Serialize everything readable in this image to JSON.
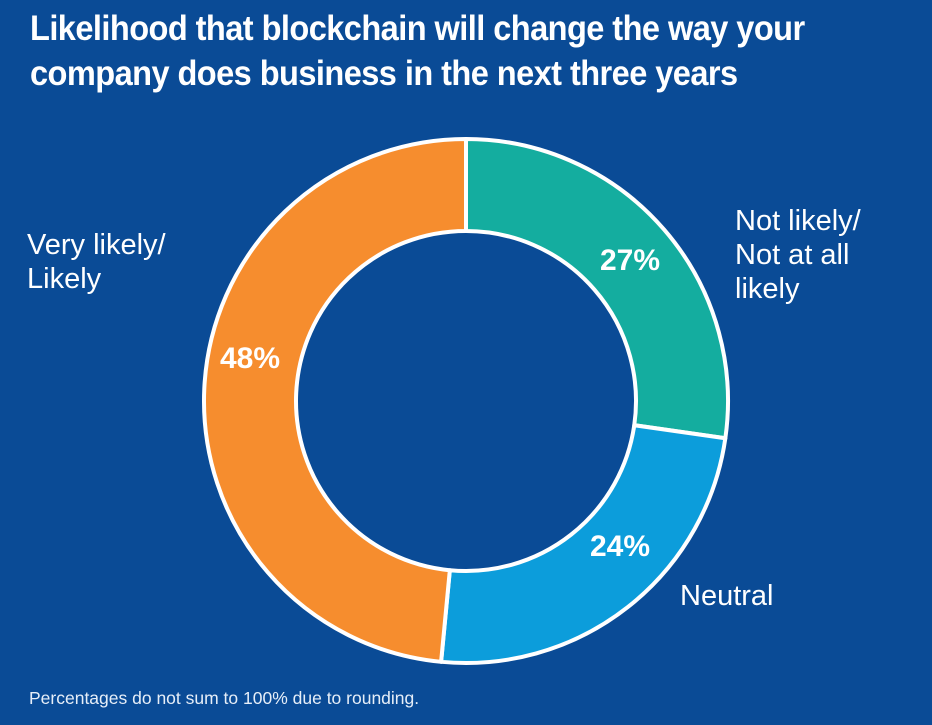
{
  "chart_data": {
    "type": "pie",
    "variant": "donut",
    "title": "Likelihood that blockchain will change the way your company does business in the next three years",
    "start": "top",
    "direction": "clockwise",
    "slices": [
      {
        "label": "Not likely/ Not at all likely",
        "label_lines": [
          "Not likely/",
          "Not at all",
          "likely"
        ],
        "value": 27,
        "value_label": "27%",
        "color": "#14AD9F"
      },
      {
        "label": "Neutral",
        "label_lines": [
          "Neutral"
        ],
        "value": 24,
        "value_label": "24%",
        "color": "#0C9DDB"
      },
      {
        "label": "Very likely/ Likely",
        "label_lines": [
          "Very likely/",
          "Likely"
        ],
        "value": 48,
        "value_label": "48%",
        "color": "#F68D2E"
      }
    ],
    "total": 99,
    "footnote": "Percentages do not sum to 100% due to rounding."
  },
  "colors": {
    "background": "#0A4B96",
    "separator": "#ffffff",
    "text": "#ffffff"
  }
}
